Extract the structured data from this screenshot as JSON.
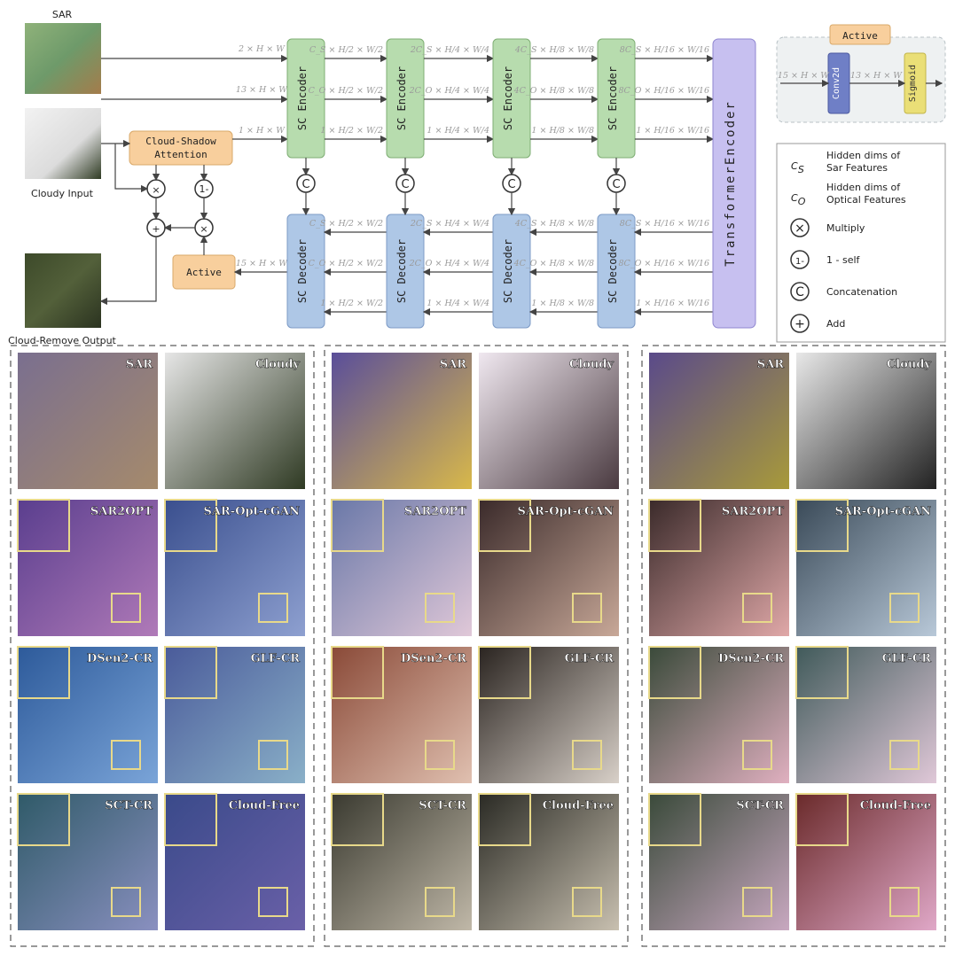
{
  "top": {
    "inputs": {
      "sar": "SAR",
      "cloudy": "Cloudy Input",
      "output": "Cloud-Remove Output"
    },
    "attention": [
      "Cloud-Shadow",
      "Attention"
    ],
    "active": "Active",
    "encoder": "SC Encoder",
    "decoder": "SC Decoder",
    "transformer": "TransformerEncoder",
    "concat": "C",
    "one_minus": "1-",
    "multiply": "×",
    "add": "+",
    "in_dims": [
      "2 × H × W",
      "13 × H × W",
      "1 × H × W"
    ],
    "out_dim": "15 × H × W",
    "stage_dims": [
      [
        "C_S × H/2 × W/2",
        "C_O × H/2 × W/2",
        "1 × H/2 × W/2"
      ],
      [
        "2C_S × H/4 × W/4",
        "2C_O × H/4 × W/4",
        "1 × H/4 × W/4"
      ],
      [
        "4C_S × H/8 × W/8",
        "4C_O × H/8 × W/8",
        "1 × H/8 × W/8"
      ],
      [
        "8C_S × H/16 × W/16",
        "8C_O × H/16 × W/16",
        "1 × H/16 × W/16"
      ]
    ],
    "active_panel": {
      "title": "Active",
      "in_dim": "15 × H × W",
      "mid_dim": "13 × H × W",
      "conv": "Conv2d",
      "sig": "Sigmoid"
    },
    "legend": [
      {
        "symbol": "C_S",
        "text": [
          "Hidden dims of",
          "Sar Features"
        ]
      },
      {
        "symbol": "C_O",
        "text": [
          "Hidden dims of",
          "Optical Features"
        ]
      },
      {
        "symbol": "×",
        "text": [
          "Multiply"
        ]
      },
      {
        "symbol": "1-",
        "text": [
          "1 - self"
        ]
      },
      {
        "symbol": "C",
        "text": [
          "Concatenation"
        ]
      },
      {
        "symbol": "+",
        "text": [
          "Add"
        ]
      }
    ]
  },
  "comparison": {
    "labels": [
      "SAR",
      "Cloudy",
      "SAR2OPT",
      "SAR-Opt-cGAN",
      "DSen2-CR",
      "GLF-CR",
      "SCT-CR",
      "Cloud-Free"
    ]
  },
  "colors": {
    "encoder": "#b7dcae",
    "decoder": "#aec7e6",
    "transformer": "#c7c0f0",
    "attention": "#f8cf9d",
    "conv": "#6f7fc6",
    "sigmoid": "#eadf77",
    "inset": "#e8d98a"
  }
}
